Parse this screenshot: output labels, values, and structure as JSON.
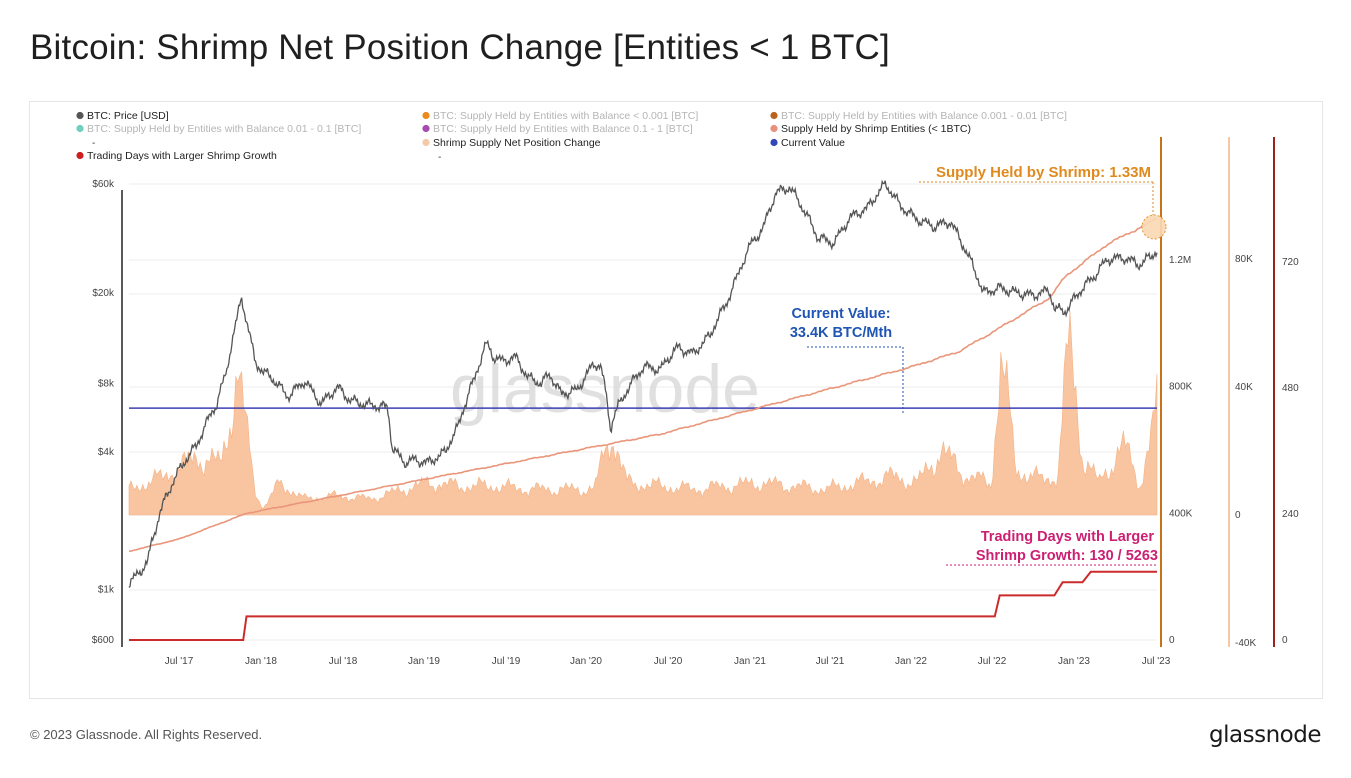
{
  "page": {
    "title": "Bitcoin: Shrimp Net Position Change [Entities < 1 BTC]",
    "footer_copyright": "© 2023 Glassnode. All Rights Reserved.",
    "footer_logo": "glassnode",
    "watermark": "glassnode"
  },
  "colors": {
    "price": "#555555",
    "supply": "#e9967a",
    "net_change_fill": "#f9c4a0",
    "current_value": "#3b3fb2",
    "trading_days": "#cc2b2b",
    "orange_axis": "#c8731a",
    "annot_supply": "#e08a1e",
    "annot_current": "#1f55b5",
    "annot_trading": "#cc1f72"
  },
  "legend": [
    {
      "label": "BTC: Price [USD]",
      "color": "#555555",
      "muted": false,
      "dash": false
    },
    {
      "label": "BTC: Supply Held by Entities with Balance < 0.001 [BTC]",
      "color": "#e98a1c",
      "muted": true,
      "dash": false
    },
    {
      "label": "BTC: Supply Held by Entities with Balance 0.001 - 0.01 [BTC]",
      "color": "#b8641e",
      "muted": true,
      "dash": false
    },
    {
      "label": "BTC: Supply Held by Entities with Balance 0.01 - 0.1 [BTC]",
      "color": "#6fd0be",
      "muted": true,
      "dash": true
    },
    {
      "label": "BTC: Supply Held by Entities with Balance 0.1 - 1 [BTC]",
      "color": "#a64bb0",
      "muted": true,
      "dash": false
    },
    {
      "label": "Supply Held by Shrimp Entities (< 1BTC)",
      "color": "#e8907a",
      "muted": false,
      "dash": false
    },
    {
      "label": "Shrimp Supply Net Position Change",
      "color": "#f7c8a6",
      "muted": false,
      "dash": true
    },
    {
      "label": "Current Value",
      "color": "#3346b8",
      "muted": false,
      "dash": false
    },
    {
      "label": "Trading Days with Larger Shrimp Growth",
      "color": "#cc1f1f",
      "muted": false,
      "dash": false
    }
  ],
  "annotations": {
    "supply": "Supply Held by Shrimp: 1.33M",
    "current_line1": "Current Value:",
    "current_line2": "33.4K BTC/Mth",
    "trading_line1": "Trading Days with Larger",
    "trading_line2": "Shrimp Growth: 130 / 5263"
  },
  "axes": {
    "x_ticks": [
      "Jul '17",
      "Jan '18",
      "Jul '18",
      "Jan '19",
      "Jul '19",
      "Jan '20",
      "Jul '20",
      "Jan '21",
      "Jul '21",
      "Jan '22",
      "Jul '22",
      "Jan '23",
      "Jul '23"
    ],
    "price_ticks": [
      "$60k",
      "$20k",
      "$8k",
      "$4k",
      "$1k",
      "$600"
    ],
    "supply_ticks": [
      "1.2M",
      "800K",
      "400K",
      "0"
    ],
    "netchange_ticks": [
      "80K",
      "40K",
      "0",
      "-40K"
    ],
    "tradingdays_ticks": [
      "720",
      "480",
      "240",
      "0"
    ]
  },
  "chart_data": {
    "type": "line",
    "title": "Bitcoin: Shrimp Net Position Change [Entities < 1 BTC]",
    "x_range": [
      "2017-04",
      "2023-07"
    ],
    "price_scale": "log",
    "price_range": [
      600,
      60000
    ],
    "grid": true,
    "legend_position": "top-left",
    "series": [
      {
        "name": "BTC: Price [USD]",
        "axis": "price",
        "x": [
          2017.29,
          2017.4,
          2017.5,
          2017.6,
          2017.7,
          2017.82,
          2017.88,
          2017.94,
          2017.97,
          2018.0,
          2018.05,
          2018.1,
          2018.15,
          2018.25,
          2018.35,
          2018.45,
          2018.55,
          2018.62,
          2018.7,
          2018.85,
          2018.88,
          2018.95,
          2019.0,
          2019.1,
          2019.2,
          2019.28,
          2019.38,
          2019.45,
          2019.49,
          2019.55,
          2019.62,
          2019.7,
          2019.78,
          2019.83,
          2019.9,
          2020.0,
          2020.1,
          2020.14,
          2020.2,
          2020.22,
          2020.3,
          2020.4,
          2020.5,
          2020.6,
          2020.7,
          2020.8,
          2020.9,
          2020.96,
          2021.05,
          2021.12,
          2021.2,
          2021.28,
          2021.36,
          2021.45,
          2021.55,
          2021.65,
          2021.75,
          2021.86,
          2021.95,
          2022.05,
          2022.15,
          2022.25,
          2022.35,
          2022.45,
          2022.55,
          2022.65,
          2022.75,
          2022.85,
          2022.88,
          2022.95,
          2023.05,
          2023.12,
          2023.2,
          2023.3,
          2023.4,
          2023.5
        ],
        "values": [
          1050,
          1300,
          2400,
          3400,
          4300,
          6500,
          9000,
          15000,
          19000,
          15000,
          10000,
          9000,
          8500,
          7000,
          8200,
          6500,
          7700,
          6800,
          6500,
          6300,
          4200,
          3600,
          3700,
          3600,
          4000,
          5200,
          8500,
          12000,
          10500,
          10000,
          10500,
          8500,
          8000,
          8800,
          7200,
          7500,
          9800,
          9500,
          5000,
          5800,
          7500,
          9500,
          9200,
          11500,
          10800,
          13000,
          18000,
          23000,
          33000,
          38000,
          55000,
          58000,
          47000,
          35000,
          33000,
          43000,
          47000,
          60000,
          48000,
          42000,
          39000,
          41000,
          30000,
          20000,
          21000,
          20000,
          19500,
          20500,
          17000,
          16600,
          21000,
          23500,
          28000,
          28500,
          26500,
          30500
        ]
      },
      {
        "name": "Supply Held by Shrimp Entities (< 1BTC)",
        "axis": "supply",
        "x": [
          2017.29,
          2017.6,
          2018.0,
          2018.5,
          2019.0,
          2019.5,
          2020.0,
          2020.5,
          2021.0,
          2021.5,
          2022.0,
          2022.3,
          2022.5,
          2022.85,
          2022.95,
          2023.2,
          2023.5
        ],
        "values": [
          280000,
          320000,
          400000,
          450000,
          500000,
          550000,
          600000,
          650000,
          720000,
          790000,
          860000,
          910000,
          970000,
          1080000,
          1150000,
          1250000,
          1330000
        ]
      },
      {
        "name": "Shrimp Supply Net Position Change",
        "axis": "netchange",
        "x": [
          2017.29,
          2017.5,
          2017.7,
          2017.85,
          2017.95,
          2018.05,
          2018.1,
          2018.2,
          2018.35,
          2018.55,
          2018.75,
          2018.95,
          2019.1,
          2019.3,
          2019.5,
          2019.7,
          2019.9,
          2020.1,
          2020.2,
          2020.3,
          2020.5,
          2020.7,
          2020.9,
          2021.1,
          2021.3,
          2021.5,
          2021.7,
          2021.9,
          2022.05,
          2022.2,
          2022.35,
          2022.5,
          2022.56,
          2022.65,
          2022.8,
          2022.9,
          2022.97,
          2023.05,
          2023.15,
          2023.3,
          2023.4,
          2023.5
        ],
        "values": [
          8000,
          12000,
          18000,
          16000,
          45000,
          8000,
          2000,
          10000,
          5000,
          6000,
          5000,
          8000,
          10000,
          9000,
          9000,
          8000,
          8000,
          8000,
          26000,
          10000,
          9000,
          8000,
          9000,
          10000,
          9000,
          8000,
          10000,
          12000,
          10000,
          20000,
          12000,
          10000,
          50000,
          14000,
          11000,
          12000,
          56000,
          18000,
          10000,
          22000,
          9000,
          34000
        ]
      },
      {
        "name": "Current Value",
        "axis": "netchange",
        "x": [
          2017.29,
          2023.5
        ],
        "values": [
          33400,
          33400
        ]
      },
      {
        "name": "Trading Days with Larger Shrimp Growth",
        "axis": "tradingdays",
        "x": [
          2017.29,
          2017.98,
          2018.0,
          2022.52,
          2022.55,
          2022.88,
          2022.93,
          2023.05,
          2023.1,
          2023.5
        ],
        "values": [
          0,
          0,
          45,
          45,
          85,
          85,
          110,
          110,
          130,
          130
        ]
      }
    ]
  }
}
